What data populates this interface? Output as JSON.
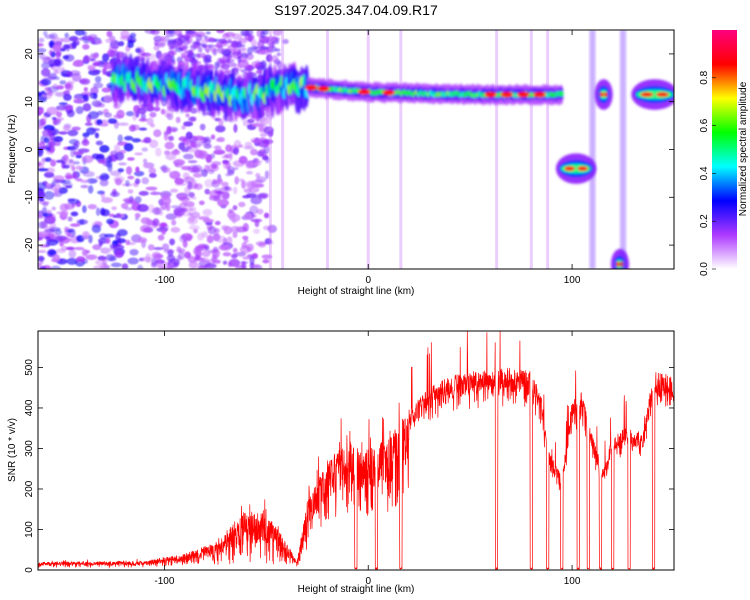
{
  "figure": {
    "title": "S197.2025.347.04.09.R17"
  },
  "chart_data": [
    {
      "type": "heatmap",
      "xlabel": "Height of straight line (km)",
      "ylabel": "Frequency (Hz)",
      "xlim": [
        -162,
        150
      ],
      "ylim": [
        -25,
        25
      ],
      "x_ticks": [
        -100,
        0,
        100
      ],
      "y_ticks": [
        -20,
        -10,
        0,
        10,
        20
      ],
      "grid": false,
      "colorbar": {
        "label": "Normalized spectral amplitude",
        "range": [
          0,
          1
        ],
        "ticks": [
          "0.0",
          "0.2",
          "0.4",
          "0.6",
          "0.8"
        ],
        "colors": [
          "#ffffff",
          "#ad39ff",
          "#0000ff",
          "#00ffff",
          "#00ff00",
          "#ffff00",
          "#ff0000",
          "#ff007f"
        ]
      },
      "ridge": [
        {
          "x": -120,
          "freq": 14.5
        },
        {
          "x": -80,
          "freq": 12.5
        },
        {
          "x": -60,
          "freq": 11
        },
        {
          "x": -40,
          "freq": 13
        },
        {
          "x": -30,
          "freq": 13
        },
        {
          "x": 0,
          "freq": 12
        },
        {
          "x": 50,
          "freq": 11.5
        },
        {
          "x": 95,
          "freq": 11.5
        }
      ],
      "ridge_segments": [
        {
          "x_start": 94,
          "x_end": 110,
          "freq": -4
        },
        {
          "x_start": 113,
          "x_end": 118,
          "freq": 11.5
        },
        {
          "x_start": 121,
          "x_end": 126,
          "freq": -24
        },
        {
          "x_start": 131,
          "x_end": 150,
          "freq": 11.5
        }
      ]
    },
    {
      "type": "line",
      "xlabel": "Height of straight line (km)",
      "ylabel": "SNR (10 * v/v)",
      "xlim": [
        -162,
        150
      ],
      "ylim": [
        0,
        590
      ],
      "x_ticks": [
        -100,
        0,
        100
      ],
      "y_ticks": [
        0,
        100,
        200,
        300,
        400,
        500
      ],
      "grid": false,
      "color": "#ff0000",
      "envelope": [
        {
          "x": -162,
          "snr": 20
        },
        {
          "x": -110,
          "snr": 22
        },
        {
          "x": -90,
          "snr": 40
        },
        {
          "x": -75,
          "snr": 70
        },
        {
          "x": -60,
          "snr": 150
        },
        {
          "x": -50,
          "snr": 140
        },
        {
          "x": -42,
          "snr": 85
        },
        {
          "x": -35,
          "snr": 20
        },
        {
          "x": -30,
          "snr": 170
        },
        {
          "x": -20,
          "snr": 270
        },
        {
          "x": -10,
          "snr": 320
        },
        {
          "x": 0,
          "snr": 300
        },
        {
          "x": 10,
          "snr": 325
        },
        {
          "x": 20,
          "snr": 400
        },
        {
          "x": 30,
          "snr": 450
        },
        {
          "x": 40,
          "snr": 480
        },
        {
          "x": 50,
          "snr": 490
        },
        {
          "x": 60,
          "snr": 495
        },
        {
          "x": 70,
          "snr": 500
        },
        {
          "x": 80,
          "snr": 490
        },
        {
          "x": 85,
          "snr": 440
        },
        {
          "x": 88,
          "snr": 300
        },
        {
          "x": 95,
          "snr": 230
        },
        {
          "x": 100,
          "snr": 420
        },
        {
          "x": 105,
          "snr": 440
        },
        {
          "x": 110,
          "snr": 330
        },
        {
          "x": 115,
          "snr": 250
        },
        {
          "x": 120,
          "snr": 330
        },
        {
          "x": 126,
          "snr": 350
        },
        {
          "x": 135,
          "snr": 340
        },
        {
          "x": 140,
          "snr": 490
        },
        {
          "x": 150,
          "snr": 480
        }
      ],
      "dropouts": [
        -6,
        4,
        16,
        63,
        80,
        88,
        95,
        103,
        108,
        114,
        120,
        128,
        140
      ]
    }
  ]
}
